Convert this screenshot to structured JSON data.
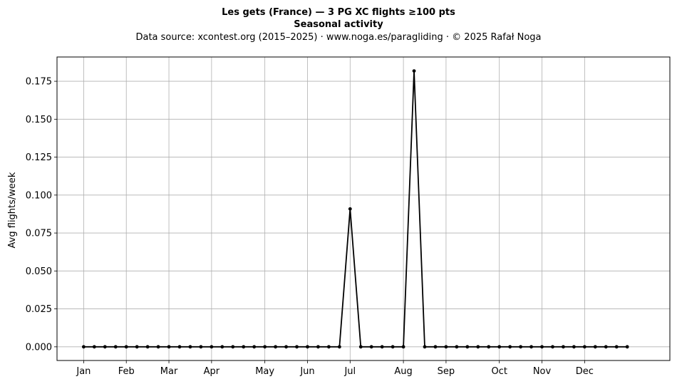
{
  "chart_data": {
    "type": "line",
    "title": "Les gets (France)  —  3 PG XC flights ≥100 pts",
    "title2": "Seasonal activity",
    "subtitle": "Data source: xcontest.org (2015–2025)  ·  www.noga.es/paragliding  ·  © 2025 Rafał Noga",
    "xlabel": "",
    "ylabel": "Avg flights/week",
    "x_ticks": [
      {
        "label": "Jan",
        "week": 1
      },
      {
        "label": "Feb",
        "week": 5
      },
      {
        "label": "Mar",
        "week": 9
      },
      {
        "label": "Apr",
        "week": 13
      },
      {
        "label": "May",
        "week": 18
      },
      {
        "label": "Jun",
        "week": 22
      },
      {
        "label": "Jul",
        "week": 26
      },
      {
        "label": "Aug",
        "week": 31
      },
      {
        "label": "Sep",
        "week": 35
      },
      {
        "label": "Oct",
        "week": 40
      },
      {
        "label": "Nov",
        "week": 44
      },
      {
        "label": "Dec",
        "week": 48
      }
    ],
    "y_ticks": [
      "0.000",
      "0.025",
      "0.050",
      "0.075",
      "0.100",
      "0.125",
      "0.150",
      "0.175"
    ],
    "xlim": [
      -1.5,
      56
    ],
    "ylim": [
      -0.009,
      0.191
    ],
    "grid": true,
    "legend": "none",
    "line_color": "#000000",
    "grid_color": "#b0b0b0",
    "x": [
      1,
      2,
      3,
      4,
      5,
      6,
      7,
      8,
      9,
      10,
      11,
      12,
      13,
      14,
      15,
      16,
      17,
      18,
      19,
      20,
      21,
      22,
      23,
      24,
      25,
      26,
      27,
      28,
      29,
      30,
      31,
      32,
      33,
      34,
      35,
      36,
      37,
      38,
      39,
      40,
      41,
      42,
      43,
      44,
      45,
      46,
      47,
      48,
      49,
      50,
      51,
      52
    ],
    "values": [
      0,
      0,
      0,
      0,
      0,
      0,
      0,
      0,
      0,
      0,
      0,
      0,
      0,
      0,
      0,
      0,
      0,
      0,
      0,
      0,
      0,
      0,
      0,
      0,
      0,
      0.0909,
      0,
      0,
      0,
      0,
      0,
      0.1818,
      0,
      0,
      0,
      0,
      0,
      0,
      0,
      0,
      0,
      0,
      0,
      0,
      0,
      0,
      0,
      0,
      0,
      0,
      0,
      0
    ]
  }
}
